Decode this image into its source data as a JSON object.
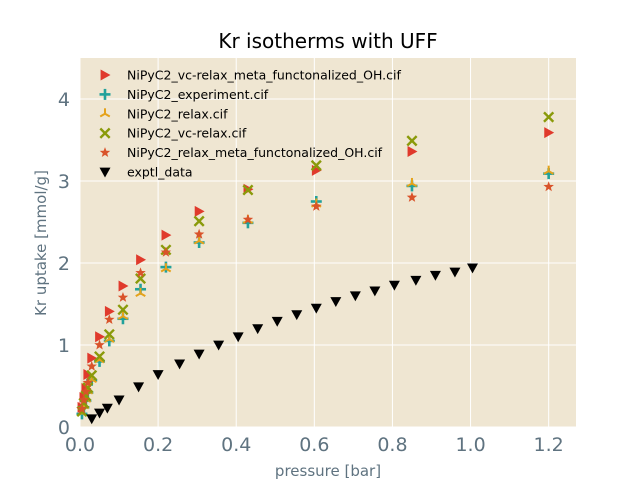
{
  "chart_data": {
    "type": "scatter",
    "title": "Kr isotherms with UFF",
    "xlabel": "pressure [bar]",
    "ylabel": "Kr uptake [mmol/g]",
    "xlim": [
      0,
      1.27
    ],
    "ylim": [
      0,
      4.5
    ],
    "xticks": [
      0.0,
      0.2,
      0.4,
      0.6,
      0.8,
      1.0,
      1.2
    ],
    "xtick_labels": [
      "0.0",
      "0.2",
      "0.4",
      "0.6",
      "0.8",
      "1.0",
      "1.2"
    ],
    "yticks": [
      0,
      1,
      2,
      3,
      4
    ],
    "ytick_labels": [
      "0",
      "1",
      "2",
      "3",
      "4"
    ],
    "grid": true,
    "background": "#efe6d2",
    "legend_position": "top-left",
    "series": [
      {
        "name": "NiPyC2_vc-relax_meta_functonalized_OH.cif",
        "marker": "triangle-right",
        "color": "#e03a2c",
        "x": [
          0.005,
          0.01,
          0.015,
          0.02,
          0.03,
          0.05,
          0.075,
          0.11,
          0.155,
          0.22,
          0.305,
          0.43,
          0.605,
          0.85,
          1.2
        ],
        "y": [
          0.24,
          0.36,
          0.47,
          0.64,
          0.84,
          1.1,
          1.41,
          1.72,
          2.04,
          2.34,
          2.63,
          2.9,
          3.13,
          3.36,
          3.59
        ]
      },
      {
        "name": "NiPyC2_experiment.cif",
        "marker": "plus",
        "color": "#21a19b",
        "x": [
          0.005,
          0.01,
          0.015,
          0.02,
          0.03,
          0.05,
          0.075,
          0.11,
          0.155,
          0.22,
          0.305,
          0.43,
          0.605,
          0.85,
          1.2
        ],
        "y": [
          0.16,
          0.24,
          0.32,
          0.42,
          0.57,
          0.8,
          1.05,
          1.32,
          1.68,
          1.95,
          2.25,
          2.49,
          2.75,
          2.94,
          3.09
        ]
      },
      {
        "name": "NiPyC2_relax.cif",
        "marker": "tri-up",
        "color": "#e5a21a",
        "x": [
          0.005,
          0.01,
          0.015,
          0.02,
          0.03,
          0.05,
          0.075,
          0.11,
          0.155,
          0.22,
          0.305,
          0.43,
          0.605,
          0.85,
          1.2
        ],
        "y": [
          0.17,
          0.26,
          0.34,
          0.44,
          0.58,
          0.82,
          1.07,
          1.35,
          1.63,
          1.93,
          2.27,
          2.52,
          2.72,
          2.97,
          3.12
        ]
      },
      {
        "name": "NiPyC2_vc-relax.cif",
        "marker": "x",
        "color": "#8a9a0a",
        "x": [
          0.005,
          0.01,
          0.015,
          0.02,
          0.03,
          0.05,
          0.075,
          0.11,
          0.155,
          0.22,
          0.305,
          0.43,
          0.605,
          0.85,
          1.2
        ],
        "y": [
          0.19,
          0.29,
          0.38,
          0.48,
          0.63,
          0.86,
          1.13,
          1.43,
          1.81,
          2.16,
          2.51,
          2.89,
          3.19,
          3.49,
          3.78
        ]
      },
      {
        "name": "NiPyC2_relax_meta_functonalized_OH.cif",
        "marker": "star",
        "color": "#d9532a",
        "x": [
          0.005,
          0.01,
          0.015,
          0.02,
          0.03,
          0.05,
          0.075,
          0.11,
          0.155,
          0.22,
          0.305,
          0.43,
          0.605,
          0.85,
          1.2
        ],
        "y": [
          0.22,
          0.33,
          0.43,
          0.54,
          0.74,
          1.0,
          1.31,
          1.58,
          1.88,
          2.13,
          2.35,
          2.53,
          2.69,
          2.8,
          2.93
        ]
      },
      {
        "name": "exptl_data",
        "marker": "triangle-down",
        "color": "#000000",
        "x": [
          0.03,
          0.05,
          0.07,
          0.1,
          0.15,
          0.2,
          0.255,
          0.305,
          0.355,
          0.405,
          0.455,
          0.505,
          0.555,
          0.605,
          0.655,
          0.705,
          0.755,
          0.805,
          0.86,
          0.91,
          0.96,
          1.005
        ],
        "y": [
          0.1,
          0.17,
          0.23,
          0.33,
          0.49,
          0.64,
          0.77,
          0.89,
          1.0,
          1.1,
          1.2,
          1.29,
          1.37,
          1.45,
          1.53,
          1.6,
          1.66,
          1.73,
          1.79,
          1.85,
          1.89,
          1.94
        ]
      }
    ]
  }
}
